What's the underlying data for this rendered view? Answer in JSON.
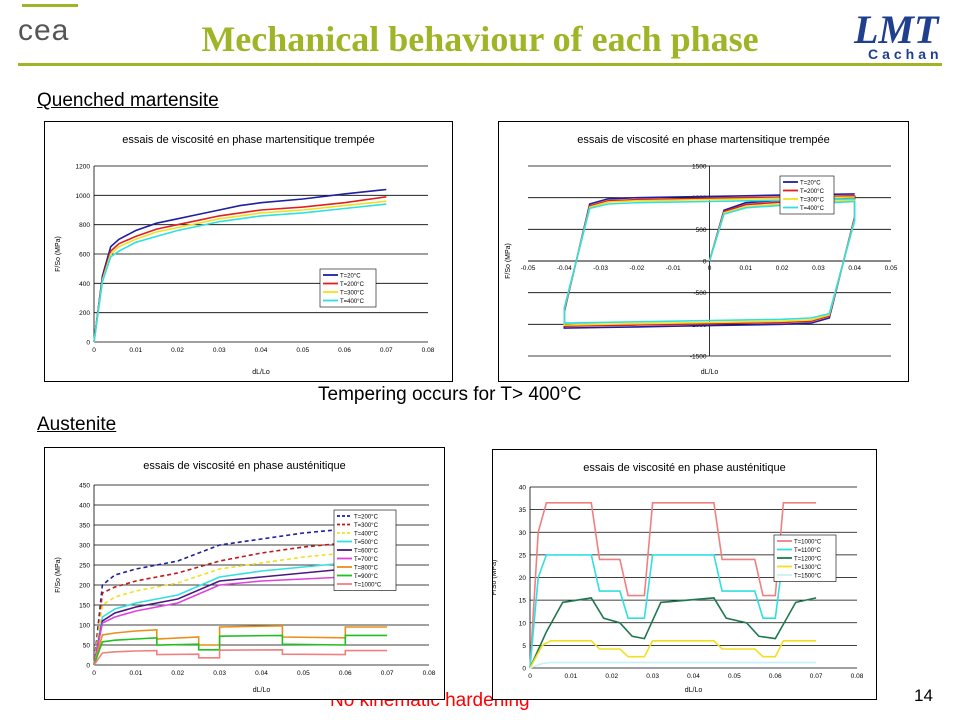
{
  "header": {
    "title": "Mechanical behaviour of each phase",
    "logo_left_text": "cea",
    "logo_right_text": "LMT",
    "logo_right_sub": "Cachan",
    "accent_color": "#a0b428"
  },
  "sections": {
    "martensite_label": "Quenched martensite",
    "austenite_label": "Austenite"
  },
  "notes": {
    "tempering": "Tempering occurs for T> 400°C",
    "no_kinematic": "No kinematic hardening",
    "page_number": "14"
  },
  "chart_data": [
    {
      "type": "line",
      "title": "essais de viscosité en phase martensitique trempée",
      "xlabel": "dL/Lo",
      "ylabel": "F/So (MPa)",
      "xlim": [
        0,
        0.08
      ],
      "ylim": [
        0,
        1200
      ],
      "xticks": [
        0,
        0.01,
        0.02,
        0.03,
        0.04,
        0.05,
        0.06,
        0.07,
        0.08
      ],
      "yticks": [
        0,
        200,
        400,
        600,
        800,
        1000,
        1200
      ],
      "grid": "horizontal",
      "legend": "bottom-right",
      "series": [
        {
          "name": "T=20°C",
          "color": "#1f1fa0",
          "x": [
            0,
            0.002,
            0.004,
            0.006,
            0.01,
            0.015,
            0.02,
            0.025,
            0.03,
            0.035,
            0.04,
            0.05,
            0.06,
            0.07
          ],
          "y": [
            0,
            450,
            650,
            700,
            760,
            810,
            840,
            870,
            900,
            930,
            950,
            975,
            1010,
            1040
          ]
        },
        {
          "name": "T=200°C",
          "color": "#e02020",
          "x": [
            0,
            0.002,
            0.004,
            0.006,
            0.01,
            0.015,
            0.02,
            0.025,
            0.03,
            0.035,
            0.04,
            0.05,
            0.06,
            0.07
          ],
          "y": [
            0,
            430,
            620,
            670,
            720,
            770,
            800,
            830,
            860,
            880,
            900,
            920,
            950,
            990
          ]
        },
        {
          "name": "T=300°C",
          "color": "#f0e020",
          "x": [
            0,
            0.002,
            0.004,
            0.006,
            0.01,
            0.015,
            0.02,
            0.025,
            0.03,
            0.035,
            0.04,
            0.05,
            0.06,
            0.07
          ],
          "y": [
            0,
            420,
            600,
            650,
            700,
            750,
            780,
            810,
            840,
            860,
            880,
            900,
            930,
            960
          ]
        },
        {
          "name": "T=400°C",
          "color": "#30e0e0",
          "x": [
            0,
            0.002,
            0.004,
            0.006,
            0.01,
            0.015,
            0.02,
            0.025,
            0.03,
            0.035,
            0.04,
            0.05,
            0.06,
            0.07
          ],
          "y": [
            0,
            410,
            580,
            620,
            680,
            720,
            760,
            790,
            820,
            840,
            860,
            880,
            910,
            940
          ]
        }
      ]
    },
    {
      "type": "line",
      "title": "essais de viscosité en phase martensitique trempée",
      "xlabel": "dL/Lo",
      "ylabel": "F/So (MPa)",
      "xlim": [
        -0.05,
        0.05
      ],
      "ylim": [
        -1500,
        1500
      ],
      "xticks": [
        -0.05,
        -0.04,
        -0.03,
        -0.02,
        -0.01,
        0,
        0.01,
        0.02,
        0.03,
        0.04,
        0.05
      ],
      "yticks": [
        -1500,
        -1000,
        -500,
        0,
        500,
        1000,
        1500
      ],
      "grid": "horizontal",
      "legend": "top-right",
      "series": [
        {
          "name": "T=20°C",
          "color": "#1f1fa0",
          "x": [
            0,
            0.004,
            0.01,
            0.02,
            0.03,
            0.04,
            0.04,
            0.033,
            0.028,
            0.02,
            0.01,
            0,
            -0.01,
            -0.02,
            -0.03,
            -0.04,
            -0.04,
            -0.033,
            -0.028,
            -0.02,
            -0.01,
            0,
            0.01,
            0.02,
            0.03,
            0.04
          ],
          "y": [
            0,
            800,
            920,
            960,
            990,
            1020,
            700,
            -900,
            -980,
            -1000,
            -1010,
            -1020,
            -1030,
            -1040,
            -1050,
            -1060,
            -800,
            900,
            980,
            1000,
            1010,
            1020,
            1030,
            1040,
            1050,
            1060
          ]
        },
        {
          "name": "T=200°C",
          "color": "#e02020",
          "x": [
            0,
            0.004,
            0.01,
            0.02,
            0.03,
            0.04,
            0.04,
            0.033,
            0.028,
            0.02,
            0.01,
            0,
            -0.01,
            -0.02,
            -0.03,
            -0.04,
            -0.04,
            -0.033,
            -0.028,
            -0.02,
            -0.01,
            0,
            0.01,
            0.02,
            0.03,
            0.04
          ],
          "y": [
            0,
            780,
            890,
            930,
            960,
            990,
            680,
            -870,
            -950,
            -970,
            -980,
            -990,
            -1000,
            -1010,
            -1020,
            -1030,
            -780,
            870,
            950,
            970,
            980,
            990,
            1000,
            1010,
            1020,
            1030
          ]
        },
        {
          "name": "T=300°C",
          "color": "#f0e020",
          "x": [
            0,
            0.004,
            0.01,
            0.02,
            0.03,
            0.04,
            0.04,
            0.033,
            0.028,
            0.02,
            0.01,
            0,
            -0.01,
            -0.02,
            -0.03,
            -0.04,
            -0.04,
            -0.033,
            -0.028,
            -0.02,
            -0.01,
            0,
            0.01,
            0.02,
            0.03,
            0.04
          ],
          "y": [
            0,
            760,
            860,
            900,
            930,
            960,
            660,
            -850,
            -930,
            -950,
            -960,
            -970,
            -980,
            -990,
            -1000,
            -1010,
            -760,
            850,
            930,
            950,
            960,
            970,
            980,
            990,
            1000,
            1010
          ]
        },
        {
          "name": "T=400°C",
          "color": "#30e0e0",
          "x": [
            0,
            0.004,
            0.01,
            0.02,
            0.03,
            0.04,
            0.04,
            0.033,
            0.028,
            0.02,
            0.01,
            0,
            -0.01,
            -0.02,
            -0.03,
            -0.04,
            -0.04,
            -0.033,
            -0.028,
            -0.02,
            -0.01,
            0,
            0.01,
            0.02,
            0.03,
            0.04
          ],
          "y": [
            0,
            740,
            840,
            880,
            910,
            940,
            640,
            -830,
            -900,
            -920,
            -930,
            -940,
            -950,
            -960,
            -970,
            -980,
            -740,
            830,
            900,
            920,
            930,
            940,
            950,
            960,
            970,
            980
          ]
        }
      ]
    },
    {
      "type": "line",
      "title": "essais de viscosité en phase austénitique",
      "xlabel": "dL/Lo",
      "ylabel": "F/So (MPa)",
      "xlim": [
        0,
        0.08
      ],
      "ylim": [
        0,
        450
      ],
      "xticks": [
        0,
        0.01,
        0.02,
        0.03,
        0.04,
        0.05,
        0.06,
        0.07,
        0.08
      ],
      "yticks": [
        0,
        50,
        100,
        150,
        200,
        250,
        300,
        350,
        400,
        450
      ],
      "grid": "horizontal",
      "legend": "right",
      "series": [
        {
          "name": "T=200°C",
          "color": "#1f1fa0",
          "dash": "4,3",
          "x": [
            0,
            0.002,
            0.005,
            0.01,
            0.015,
            0.02,
            0.03,
            0.04,
            0.05,
            0.06,
            0.07
          ],
          "y": [
            0,
            200,
            225,
            240,
            250,
            260,
            300,
            315,
            330,
            340,
            350
          ]
        },
        {
          "name": "T=300°C",
          "color": "#c01818",
          "dash": "4,3",
          "x": [
            0,
            0.002,
            0.005,
            0.01,
            0.015,
            0.02,
            0.03,
            0.04,
            0.05,
            0.06,
            0.07
          ],
          "y": [
            0,
            180,
            195,
            210,
            220,
            230,
            260,
            280,
            295,
            305,
            320
          ]
        },
        {
          "name": "T=400°C",
          "color": "#f0e020",
          "dash": "4,3",
          "x": [
            0,
            0.002,
            0.005,
            0.01,
            0.015,
            0.02,
            0.03,
            0.04,
            0.05,
            0.06,
            0.07
          ],
          "y": [
            0,
            150,
            170,
            185,
            195,
            205,
            240,
            255,
            270,
            280,
            290
          ]
        },
        {
          "name": "T=500°C",
          "color": "#30e0e0",
          "x": [
            0,
            0.002,
            0.005,
            0.01,
            0.015,
            0.02,
            0.03,
            0.04,
            0.05,
            0.06,
            0.07
          ],
          "y": [
            0,
            120,
            140,
            155,
            165,
            175,
            220,
            235,
            245,
            255,
            265
          ]
        },
        {
          "name": "T=600°C",
          "color": "#4b1880",
          "x": [
            0,
            0.002,
            0.005,
            0.01,
            0.015,
            0.02,
            0.03,
            0.04,
            0.05,
            0.06,
            0.07
          ],
          "y": [
            0,
            110,
            130,
            145,
            155,
            165,
            210,
            220,
            230,
            240,
            250
          ]
        },
        {
          "name": "T=700°C",
          "color": "#e040e0",
          "x": [
            0,
            0.002,
            0.005,
            0.01,
            0.015,
            0.02,
            0.03,
            0.04,
            0.05,
            0.06,
            0.07
          ],
          "y": [
            0,
            105,
            120,
            135,
            145,
            155,
            200,
            210,
            215,
            220,
            225
          ]
        },
        {
          "name": "T=800°C",
          "color": "#e89018",
          "x": [
            0,
            0.002,
            0.005,
            0.01,
            0.015,
            0.015,
            0.025,
            0.025,
            0.03,
            0.03,
            0.045,
            0.045,
            0.06,
            0.06,
            0.07
          ],
          "y": [
            0,
            75,
            80,
            85,
            88,
            65,
            70,
            50,
            50,
            95,
            98,
            70,
            68,
            95,
            95
          ]
        },
        {
          "name": "T=900°C",
          "color": "#20c020",
          "x": [
            0,
            0.002,
            0.005,
            0.01,
            0.015,
            0.015,
            0.025,
            0.025,
            0.03,
            0.03,
            0.045,
            0.045,
            0.06,
            0.06,
            0.07
          ],
          "y": [
            0,
            58,
            62,
            65,
            68,
            50,
            52,
            38,
            38,
            72,
            74,
            52,
            50,
            74,
            74
          ]
        },
        {
          "name": "T=1000°C",
          "color": "#f08080",
          "x": [
            0,
            0.002,
            0.005,
            0.01,
            0.015,
            0.015,
            0.025,
            0.025,
            0.03,
            0.03,
            0.045,
            0.045,
            0.06,
            0.06,
            0.07
          ],
          "y": [
            0,
            30,
            33,
            35,
            36,
            26,
            27,
            18,
            18,
            37,
            38,
            27,
            26,
            36,
            36
          ]
        }
      ]
    },
    {
      "type": "line",
      "title": "essais de viscosité en phase austénitique",
      "xlabel": "dL/Lo",
      "ylabel": "F/So (MPa)",
      "xlim": [
        0,
        0.08
      ],
      "ylim": [
        0,
        40
      ],
      "xticks": [
        0,
        0.01,
        0.02,
        0.03,
        0.04,
        0.05,
        0.06,
        0.07,
        0.08
      ],
      "yticks": [
        0,
        5,
        10,
        15,
        20,
        25,
        30,
        35,
        40
      ],
      "grid": "horizontal",
      "legend": "right",
      "series": [
        {
          "name": "T=1000°C",
          "color": "#f08080",
          "x": [
            0,
            0.002,
            0.004,
            0.015,
            0.017,
            0.022,
            0.024,
            0.028,
            0.03,
            0.045,
            0.047,
            0.055,
            0.057,
            0.06,
            0.062,
            0.07
          ],
          "y": [
            0,
            30,
            36.5,
            36.5,
            24,
            24,
            16,
            16,
            36.5,
            36.5,
            24,
            24,
            16,
            16,
            36.5,
            36.5
          ]
        },
        {
          "name": "T=1100°C",
          "color": "#30e0e0",
          "x": [
            0,
            0.002,
            0.004,
            0.015,
            0.017,
            0.022,
            0.024,
            0.028,
            0.03,
            0.045,
            0.047,
            0.055,
            0.057,
            0.06,
            0.062,
            0.07
          ],
          "y": [
            0,
            20,
            25,
            25,
            17,
            17,
            11,
            11,
            25,
            25,
            17,
            17,
            11,
            11,
            25,
            25
          ]
        },
        {
          "name": "T=1200°C",
          "color": "#207850",
          "x": [
            0,
            0.004,
            0.008,
            0.015,
            0.018,
            0.022,
            0.025,
            0.028,
            0.032,
            0.045,
            0.048,
            0.053,
            0.056,
            0.06,
            0.065,
            0.07
          ],
          "y": [
            0,
            8,
            14.5,
            15.5,
            11,
            10,
            7,
            6.5,
            14.5,
            15.5,
            11,
            10,
            7,
            6.5,
            14.5,
            15.5
          ]
        },
        {
          "name": "T=1300°C",
          "color": "#f0e020",
          "x": [
            0,
            0.003,
            0.005,
            0.015,
            0.017,
            0.022,
            0.024,
            0.028,
            0.03,
            0.045,
            0.047,
            0.055,
            0.057,
            0.06,
            0.062,
            0.07
          ],
          "y": [
            0,
            5,
            6,
            6,
            4.2,
            4.2,
            2.5,
            2.5,
            6,
            6,
            4.2,
            4.2,
            2.5,
            2.5,
            6,
            6
          ]
        },
        {
          "name": "T=1500°C",
          "color": "#c8f0f8",
          "x": [
            0,
            0.003,
            0.005,
            0.07
          ],
          "y": [
            0,
            1,
            1.2,
            1.2
          ]
        }
      ]
    }
  ]
}
